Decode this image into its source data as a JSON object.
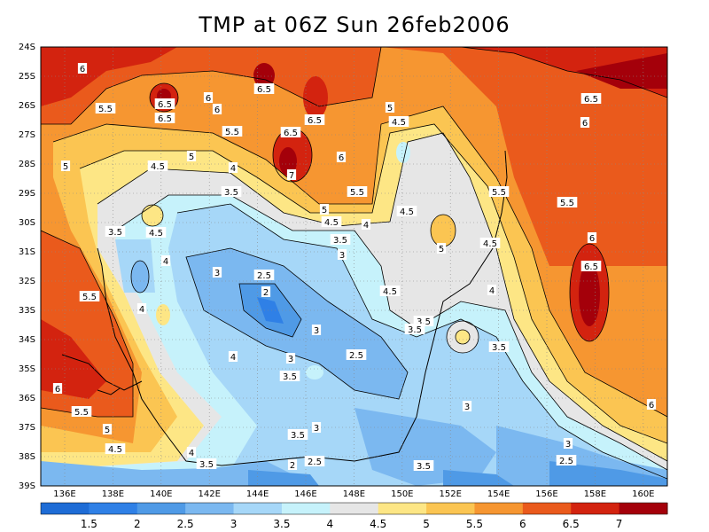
{
  "title": "TMP at 06Z Sun 26feb2006",
  "lat_labels": [
    "24S",
    "25S",
    "26S",
    "27S",
    "28S",
    "29S",
    "30S",
    "31S",
    "32S",
    "33S",
    "34S",
    "35S",
    "36S",
    "37S",
    "38S",
    "39S"
  ],
  "lon_labels": [
    "136E",
    "138E",
    "140E",
    "142E",
    "144E",
    "146E",
    "148E",
    "150E",
    "152E",
    "154E",
    "156E",
    "158E",
    "160E"
  ],
  "colorbar": {
    "colors": [
      "#1e6cd6",
      "#2f80e6",
      "#4f9ae6",
      "#7bb8f0",
      "#a6d7f8",
      "#c6f2fb",
      "#e6e6e6",
      "#fde685",
      "#fbc552",
      "#f69631",
      "#ea5a1c",
      "#d3230f",
      "#a4000a"
    ],
    "labels": [
      "1.5",
      "2",
      "2.5",
      "3",
      "3.5",
      "4",
      "4.5",
      "5",
      "5.5",
      "6",
      "6.5",
      "7"
    ]
  },
  "contour_labels": [
    {
      "t": "6"
    },
    {
      "t": "5.5"
    },
    {
      "t": "6.5"
    },
    {
      "t": "6.5"
    },
    {
      "t": "6"
    },
    {
      "t": "6"
    },
    {
      "t": "6.5"
    },
    {
      "t": "6.5"
    },
    {
      "t": "6.5"
    },
    {
      "t": "6"
    },
    {
      "t": "5.5"
    },
    {
      "t": "7"
    },
    {
      "t": "5"
    },
    {
      "t": "4.5"
    },
    {
      "t": "5"
    },
    {
      "t": "4"
    },
    {
      "t": "3.5"
    },
    {
      "t": "5"
    },
    {
      "t": "4.5"
    },
    {
      "t": "4"
    },
    {
      "t": "3.5"
    },
    {
      "t": "3"
    },
    {
      "t": "5.5"
    },
    {
      "t": "5"
    },
    {
      "t": "4.5"
    },
    {
      "t": "4.5"
    },
    {
      "t": "5"
    },
    {
      "t": "5.5"
    },
    {
      "t": "6.5"
    },
    {
      "t": "6"
    },
    {
      "t": "5.5"
    },
    {
      "t": "6"
    },
    {
      "t": "6.5"
    },
    {
      "t": "4.5"
    },
    {
      "t": "3.5"
    },
    {
      "t": "4.5"
    },
    {
      "t": "4"
    },
    {
      "t": "3"
    },
    {
      "t": "2.5"
    },
    {
      "t": "2"
    },
    {
      "t": "4.5"
    },
    {
      "t": "4"
    },
    {
      "t": "5.5"
    },
    {
      "t": "3"
    },
    {
      "t": "3"
    },
    {
      "t": "3.5"
    },
    {
      "t": "2.5"
    },
    {
      "t": "4"
    },
    {
      "t": "4"
    },
    {
      "t": "3.5"
    },
    {
      "t": "3.5"
    },
    {
      "t": "3.5"
    },
    {
      "t": "6"
    },
    {
      "t": "5.5"
    },
    {
      "t": "5"
    },
    {
      "t": "4.5"
    },
    {
      "t": "4"
    },
    {
      "t": "3.5"
    },
    {
      "t": "2"
    },
    {
      "t": "2.5"
    },
    {
      "t": "3.5"
    },
    {
      "t": "3"
    },
    {
      "t": "3"
    },
    {
      "t": "2.5"
    },
    {
      "t": "6"
    },
    {
      "t": "3.5"
    },
    {
      "t": "3"
    }
  ]
}
